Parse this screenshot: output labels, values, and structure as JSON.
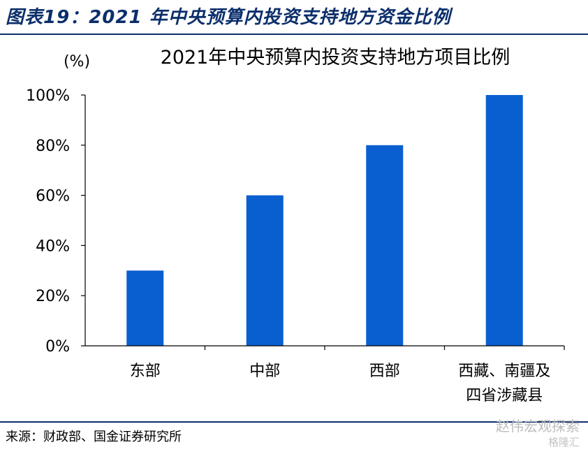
{
  "figure_title": "图表19：2021 年中央预算内投资支持地方资金比例",
  "source": "来源：财政部、国金证券研究所",
  "watermark": "赵伟宏观探索",
  "watermark_sub": "格隆汇",
  "chart_data": {
    "type": "bar",
    "title": "2021年中央预算内投资支持地方项目比例",
    "ylabel": "(%)",
    "ylim": [
      0,
      100
    ],
    "yticks": [
      "0%",
      "20%",
      "40%",
      "60%",
      "80%",
      "100%"
    ],
    "yticks_values": [
      0,
      20,
      40,
      60,
      80,
      100
    ],
    "categories": [
      [
        "东部"
      ],
      [
        "中部"
      ],
      [
        "西部"
      ],
      [
        "西藏、南疆及",
        "四省涉藏县"
      ]
    ],
    "values": [
      30,
      60,
      80,
      100
    ],
    "bar_color": "#0a5fd0",
    "grid": false
  }
}
